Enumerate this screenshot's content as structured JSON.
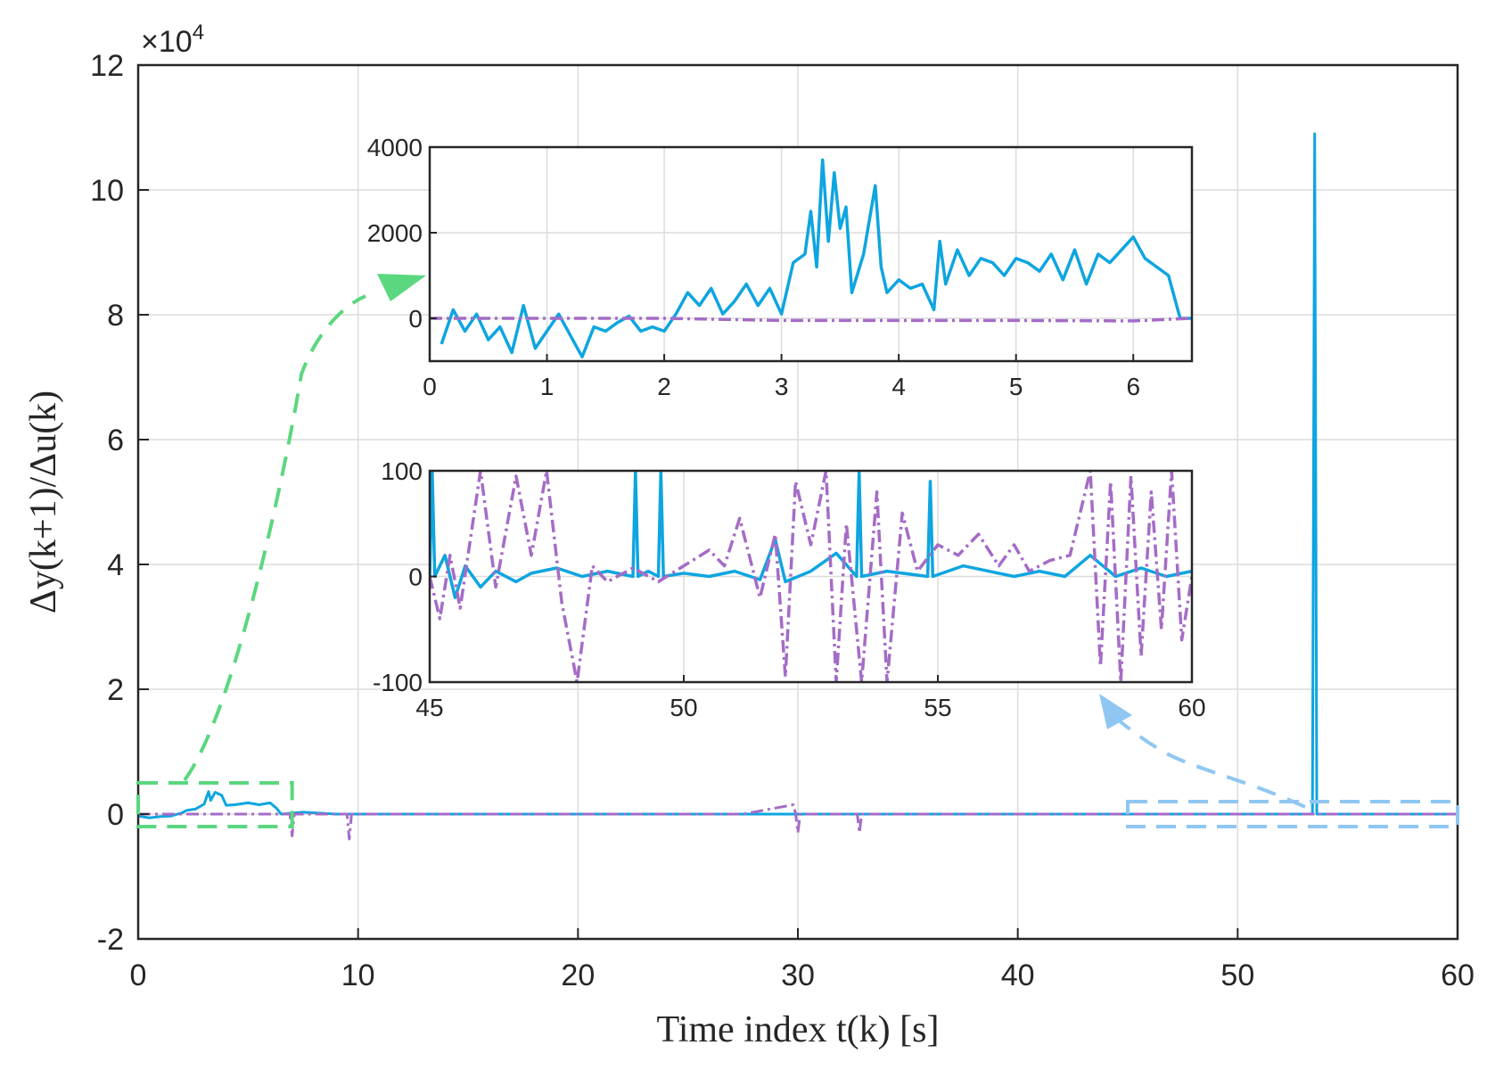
{
  "chart_data": [
    {
      "id": "main",
      "type": "line",
      "xlabel": "Time index t(k) [s]",
      "ylabel": "Δy(k+1)/Δu(k)",
      "xlim": [
        0,
        60
      ],
      "ylim": [
        -20000,
        120000
      ],
      "x_ticks": [
        0,
        10,
        20,
        30,
        40,
        50,
        60
      ],
      "x_tick_labels": [
        "0",
        "10",
        "20",
        "30",
        "40",
        "50",
        "60"
      ],
      "y_ticks": [
        -20000,
        0,
        20000,
        40000,
        60000,
        80000,
        100000,
        120000
      ],
      "y_tick_labels": [
        "-2",
        "0",
        "2",
        "4",
        "6",
        "8",
        "10",
        "12"
      ],
      "y_exponent_label": "×10",
      "y_exponent_power": "4",
      "grid": true,
      "series": [
        {
          "name": "blue",
          "color": "#0ea5e0",
          "style": "solid",
          "x": [
            0.0,
            0.5,
            1.0,
            1.5,
            2.0,
            2.2,
            2.6,
            3.0,
            3.2,
            3.3,
            3.5,
            3.8,
            4.0,
            4.4,
            5.0,
            5.5,
            6.0,
            6.3,
            6.5,
            7.5,
            9.0,
            13.0,
            21.0,
            27.5,
            33.0,
            40.0,
            45.0,
            53.4,
            53.5,
            53.6,
            55.0,
            60.0
          ],
          "y": [
            -300,
            -600,
            -400,
            -300,
            200,
            600,
            800,
            1600,
            3600,
            2200,
            3500,
            3000,
            1400,
            1500,
            1800,
            1500,
            1800,
            900,
            0,
            300,
            0,
            0,
            0,
            0,
            0,
            0,
            0,
            0,
            109000,
            0,
            0,
            0
          ]
        },
        {
          "name": "purple",
          "color": "#a56cc6",
          "style": "dashdot",
          "x": [
            0.0,
            5.0,
            6.9,
            7.0,
            7.1,
            9.5,
            9.6,
            9.7,
            15.0,
            22.5,
            27.5,
            29.8,
            29.9,
            30.0,
            30.1,
            32.7,
            32.8,
            32.9,
            40.0,
            45.0,
            50.0,
            55.0,
            60.0
          ],
          "y": [
            0,
            0,
            0,
            -3500,
            0,
            0,
            -4000,
            0,
            0,
            0,
            0,
            1500,
            0,
            -3000,
            0,
            0,
            -3000,
            0,
            0,
            0,
            0,
            0,
            0
          ]
        }
      ],
      "annotations": [
        {
          "type": "zoom-box",
          "color": "#5bd77f",
          "x_range": [
            0,
            7
          ],
          "y_range": [
            -2000,
            5000
          ],
          "target": "inset-top"
        },
        {
          "type": "zoom-box",
          "color": "#8fc7f2",
          "x_range": [
            45,
            60
          ],
          "y_range": [
            -2000,
            2000
          ],
          "target": "inset-bottom"
        }
      ]
    },
    {
      "id": "inset-top",
      "type": "line",
      "xlim": [
        0,
        6.5
      ],
      "ylim": [
        -1000,
        4000
      ],
      "x_ticks": [
        0,
        1,
        2,
        3,
        4,
        5,
        6
      ],
      "x_tick_labels": [
        "0",
        "1",
        "2",
        "3",
        "4",
        "5",
        "6"
      ],
      "y_ticks": [
        0,
        2000,
        4000
      ],
      "y_tick_labels": [
        "0",
        "2000",
        "4000"
      ],
      "grid": true,
      "series": [
        {
          "name": "blue",
          "color": "#0ea5e0",
          "style": "solid",
          "x": [
            0.1,
            0.2,
            0.3,
            0.4,
            0.5,
            0.6,
            0.7,
            0.8,
            0.9,
            1.0,
            1.1,
            1.2,
            1.3,
            1.4,
            1.5,
            1.6,
            1.7,
            1.8,
            1.9,
            2.0,
            2.1,
            2.2,
            2.3,
            2.4,
            2.5,
            2.6,
            2.7,
            2.8,
            2.9,
            3.0,
            3.1,
            3.2,
            3.25,
            3.3,
            3.35,
            3.4,
            3.45,
            3.5,
            3.55,
            3.6,
            3.7,
            3.8,
            3.85,
            3.9,
            4.0,
            4.1,
            4.2,
            4.3,
            4.35,
            4.4,
            4.5,
            4.6,
            4.7,
            4.8,
            4.9,
            5.0,
            5.1,
            5.2,
            5.3,
            5.4,
            5.5,
            5.6,
            5.7,
            5.8,
            5.9,
            6.0,
            6.1,
            6.2,
            6.3,
            6.4,
            6.5
          ],
          "y": [
            -600,
            200,
            -300,
            100,
            -500,
            -200,
            -800,
            300,
            -700,
            -300,
            100,
            -400,
            -900,
            -200,
            -300,
            -100,
            50,
            -300,
            -200,
            -300,
            100,
            600,
            300,
            700,
            100,
            400,
            800,
            300,
            700,
            100,
            1300,
            1500,
            2500,
            1200,
            3700,
            1800,
            3400,
            2100,
            2600,
            600,
            1500,
            3100,
            1200,
            600,
            900,
            700,
            800,
            200,
            1800,
            800,
            1600,
            1000,
            1400,
            1300,
            1000,
            1400,
            1300,
            1100,
            1500,
            900,
            1600,
            800,
            1500,
            1300,
            1600,
            1900,
            1400,
            1200,
            1000,
            0,
            0
          ]
        },
        {
          "name": "purple",
          "color": "#a56cc6",
          "style": "dashdot",
          "x": [
            0,
            1,
            2,
            3,
            4,
            5,
            6,
            6.5
          ],
          "y": [
            0,
            0,
            0,
            -50,
            -50,
            -50,
            -60,
            0
          ]
        }
      ]
    },
    {
      "id": "inset-bottom",
      "type": "line",
      "xlim": [
        45,
        60
      ],
      "ylim": [
        -100,
        100
      ],
      "x_ticks": [
        45,
        50,
        55,
        60
      ],
      "x_tick_labels": [
        "45",
        "50",
        "55",
        "60"
      ],
      "y_ticks": [
        -100,
        0,
        100
      ],
      "y_tick_labels": [
        "-100",
        "0",
        "100"
      ],
      "grid": true,
      "series": [
        {
          "name": "blue",
          "color": "#0ea5e0",
          "style": "solid",
          "x": [
            45.0,
            45.05,
            45.1,
            45.3,
            45.5,
            45.7,
            46.0,
            46.3,
            46.7,
            47.0,
            47.5,
            48.0,
            48.5,
            49.0,
            49.05,
            49.1,
            49.3,
            49.5,
            49.55,
            49.6,
            50.0,
            50.5,
            51.0,
            51.5,
            51.8,
            52.0,
            52.5,
            53.0,
            53.4,
            53.45,
            53.5,
            54.0,
            54.8,
            54.85,
            54.9,
            55.5,
            56.0,
            56.5,
            57.0,
            57.5,
            58.0,
            58.5,
            59.0,
            59.5,
            60.0
          ],
          "y": [
            0,
            100,
            0,
            20,
            -20,
            10,
            -10,
            5,
            -5,
            3,
            8,
            0,
            5,
            0,
            100,
            0,
            5,
            0,
            100,
            0,
            3,
            0,
            5,
            -3,
            35,
            -5,
            5,
            22,
            0,
            100,
            0,
            5,
            0,
            90,
            0,
            10,
            5,
            0,
            5,
            0,
            20,
            0,
            8,
            0,
            5
          ]
        },
        {
          "name": "purple",
          "color": "#a56cc6",
          "style": "dashdot",
          "x": [
            45.0,
            45.2,
            45.4,
            45.6,
            46.0,
            46.3,
            46.7,
            47.0,
            47.3,
            47.6,
            47.9,
            48.2,
            48.5,
            49.0,
            49.5,
            50.0,
            50.5,
            50.8,
            51.1,
            51.5,
            51.8,
            52.0,
            52.2,
            52.5,
            52.8,
            53.0,
            53.2,
            53.5,
            53.8,
            54.0,
            54.3,
            54.6,
            55.0,
            55.4,
            55.8,
            56.2,
            56.5,
            56.8,
            57.2,
            57.6,
            58.0,
            58.2,
            58.4,
            58.6,
            58.8,
            59.0,
            59.2,
            59.4,
            59.6,
            59.8,
            60.0
          ],
          "y": [
            0,
            -40,
            20,
            -30,
            100,
            -10,
            95,
            20,
            100,
            -25,
            -100,
            10,
            -5,
            8,
            -5,
            10,
            25,
            10,
            55,
            -20,
            40,
            -95,
            90,
            30,
            100,
            -100,
            50,
            -100,
            80,
            -100,
            60,
            5,
            30,
            20,
            40,
            10,
            30,
            5,
            15,
            20,
            100,
            -85,
            90,
            -100,
            95,
            -75,
            80,
            -50,
            100,
            -60,
            0
          ]
        }
      ]
    }
  ]
}
